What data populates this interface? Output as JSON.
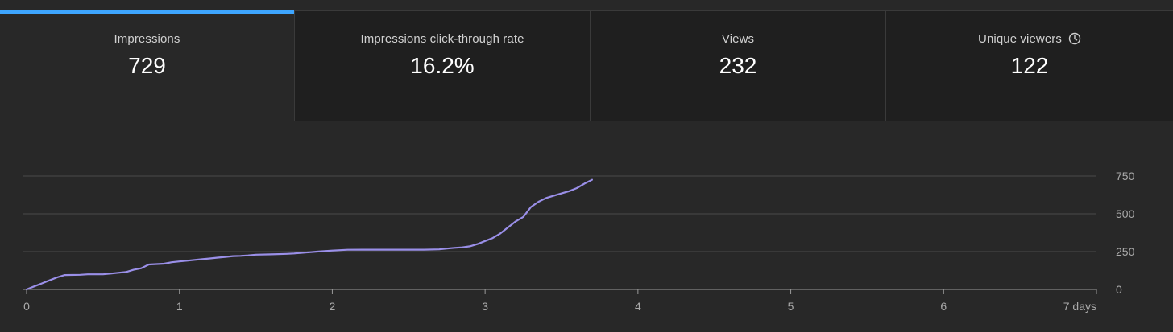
{
  "tabs": [
    {
      "label": "Impressions",
      "value": "729",
      "active": true
    },
    {
      "label": "Impressions click-through rate",
      "value": "16.2%",
      "active": false
    },
    {
      "label": "Views",
      "value": "232",
      "active": false
    },
    {
      "label": "Unique viewers",
      "value": "122",
      "active": false,
      "icon": "clock-icon"
    }
  ],
  "colors": {
    "accent": "#3ea6ff",
    "line": "#9a8fe8",
    "background": "#282828",
    "tab_inactive": "#1f1f1f",
    "grid": "#4a4a4a"
  },
  "chart_data": {
    "type": "line",
    "xlabel": "",
    "ylabel": "",
    "xlim": [
      0,
      7
    ],
    "ylim": [
      0,
      750
    ],
    "x_ticks": [
      0,
      1,
      2,
      3,
      4,
      5,
      6,
      7
    ],
    "x_tick_labels": [
      "0",
      "1",
      "2",
      "3",
      "4",
      "5",
      "6",
      "7 days"
    ],
    "y_ticks": [
      0,
      250,
      500,
      750
    ],
    "y_tick_labels": [
      "0",
      "250",
      "500",
      "750"
    ],
    "y_axis_position": "right",
    "grid": true,
    "series": [
      {
        "x": [
          0,
          0.05,
          0.1,
          0.15,
          0.2,
          0.25,
          0.35,
          0.4,
          0.5,
          0.55,
          0.6,
          0.65,
          0.7,
          0.75,
          0.8,
          0.9,
          0.95,
          1.0,
          1.05,
          1.1,
          1.15,
          1.2,
          1.25,
          1.3,
          1.35,
          1.4,
          1.45,
          1.5,
          1.6,
          1.7,
          1.75,
          1.8,
          1.85,
          1.9,
          1.95,
          2.0,
          2.1,
          2.2,
          2.3,
          2.4,
          2.5,
          2.6,
          2.7,
          2.75,
          2.8,
          2.85,
          2.9,
          2.95,
          3.0,
          3.05,
          3.1,
          3.15,
          3.2,
          3.25,
          3.3,
          3.35,
          3.4,
          3.45,
          3.5,
          3.55,
          3.6,
          3.65,
          3.7
        ],
        "y": [
          0,
          20,
          40,
          60,
          80,
          95,
          97,
          100,
          100,
          105,
          110,
          115,
          130,
          140,
          165,
          170,
          180,
          185,
          190,
          195,
          200,
          205,
          210,
          215,
          220,
          222,
          225,
          230,
          232,
          235,
          238,
          242,
          246,
          250,
          253,
          257,
          262,
          263,
          263,
          263,
          263,
          263,
          265,
          270,
          275,
          278,
          285,
          300,
          320,
          340,
          370,
          410,
          450,
          480,
          545,
          580,
          605,
          620,
          635,
          650,
          670,
          700,
          725
        ]
      }
    ]
  }
}
